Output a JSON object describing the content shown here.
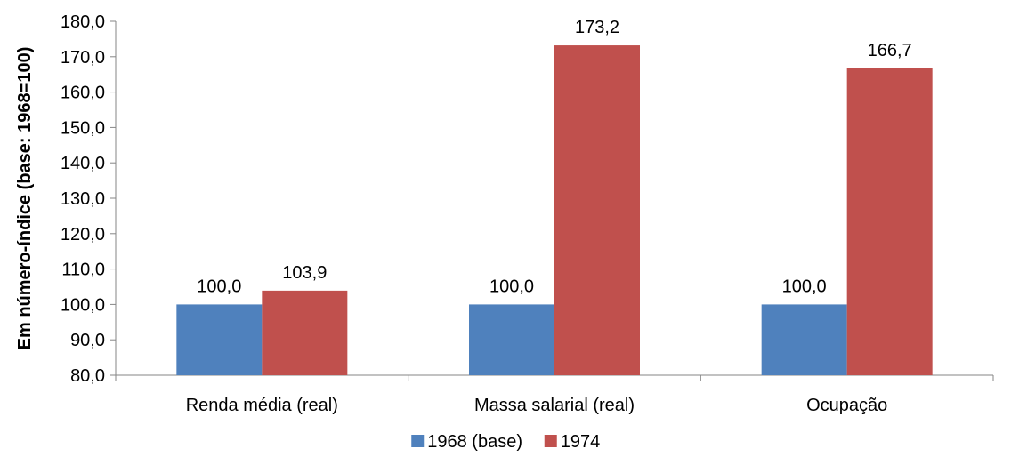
{
  "chart_data": {
    "type": "bar",
    "title": "",
    "xlabel": "",
    "ylabel": "Em número-índice (base: 1968=100)",
    "ylim": [
      80,
      180
    ],
    "yticks": [
      80,
      90,
      100,
      110,
      120,
      130,
      140,
      150,
      160,
      170,
      180
    ],
    "ytick_labels": [
      "80,0",
      "90,0",
      "100,0",
      "110,0",
      "120,0",
      "130,0",
      "140,0",
      "150,0",
      "160,0",
      "170,0",
      "180,0"
    ],
    "categories": [
      "Renda média (real)",
      "Massa salarial (real)",
      "Ocupação"
    ],
    "series": [
      {
        "name": "1968 (base)",
        "color": "#4F81BD",
        "values": [
          100.0,
          100.0,
          100.0
        ],
        "labels": [
          "100,0",
          "100,0",
          "100,0"
        ]
      },
      {
        "name": "1974",
        "color": "#C0504D",
        "values": [
          103.9,
          173.2,
          166.7
        ],
        "labels": [
          "103,9",
          "173,2",
          "166,7"
        ]
      }
    ],
    "grid": false,
    "legend_position": "bottom"
  }
}
